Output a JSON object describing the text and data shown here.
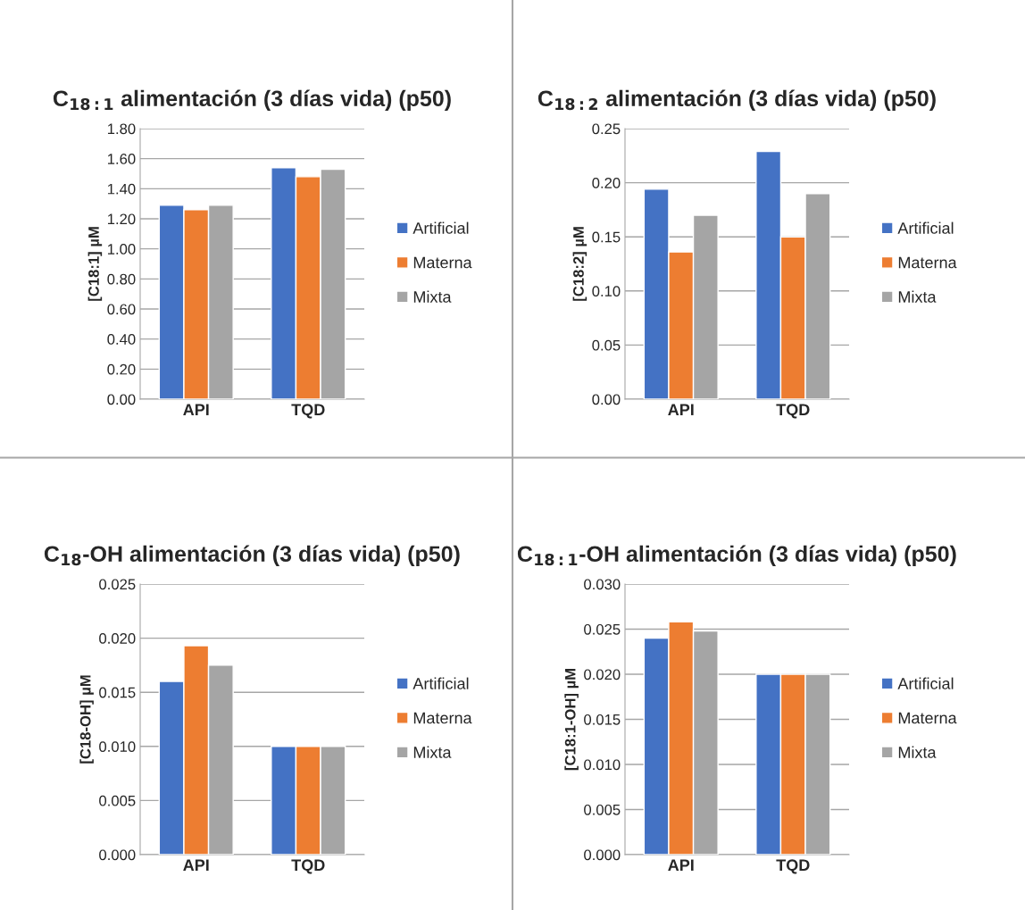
{
  "chart_data": [
    {
      "type": "bar",
      "title": "C$_{18:1}$ alimentación (3 días vida) (p50)",
      "ylabel": "[C18:1] µM",
      "categories": [
        "API",
        "TQD"
      ],
      "series": [
        {
          "name": "Artificial",
          "color": "#4472c4",
          "values": [
            1.29,
            1.54
          ]
        },
        {
          "name": "Materna",
          "color": "#ed7d31",
          "values": [
            1.26,
            1.48
          ]
        },
        {
          "name": "Mixta",
          "color": "#a5a5a5",
          "values": [
            1.29,
            1.53
          ]
        }
      ],
      "ylim": [
        0,
        1.8
      ],
      "yticks": [
        {
          "value": 0,
          "label": "0.00"
        },
        {
          "value": 0.2,
          "label": "0.20"
        },
        {
          "value": 0.4,
          "label": "0.40"
        },
        {
          "value": 0.6,
          "label": "0.60"
        },
        {
          "value": 0.8,
          "label": "0.80"
        },
        {
          "value": 1.0,
          "label": "1.00"
        },
        {
          "value": 1.2,
          "label": "1.20"
        },
        {
          "value": 1.4,
          "label": "1.40"
        },
        {
          "value": 1.6,
          "label": "1.60"
        },
        {
          "value": 1.8,
          "label": "1.80"
        }
      ],
      "grid": "y",
      "legend": "right"
    },
    {
      "type": "bar",
      "title": "C$_{18:2}$ alimentación (3 días vida) (p50)",
      "ylabel": "[C18:2] µM",
      "categories": [
        "API",
        "TQD"
      ],
      "series": [
        {
          "name": "Artificial",
          "color": "#4472c4",
          "values": [
            0.194,
            0.229
          ]
        },
        {
          "name": "Materna",
          "color": "#ed7d31",
          "values": [
            0.136,
            0.15
          ]
        },
        {
          "name": "Mixta",
          "color": "#a5a5a5",
          "values": [
            0.17,
            0.19
          ]
        }
      ],
      "ylim": [
        0,
        0.25
      ],
      "yticks": [
        {
          "value": 0,
          "label": "0.00"
        },
        {
          "value": 0.05,
          "label": "0.05"
        },
        {
          "value": 0.1,
          "label": "0.10"
        },
        {
          "value": 0.15,
          "label": "0.15"
        },
        {
          "value": 0.2,
          "label": "0.20"
        },
        {
          "value": 0.25,
          "label": "0.25"
        }
      ],
      "grid": "y",
      "legend": "right"
    },
    {
      "type": "bar",
      "title": "C$_{18}$-OH alimentación (3 días vida) (p50)",
      "ylabel": "[C18-OH] µM",
      "categories": [
        "API",
        "TQD"
      ],
      "series": [
        {
          "name": "Artificial",
          "color": "#4472c4",
          "values": [
            0.016,
            0.01
          ]
        },
        {
          "name": "Materna",
          "color": "#ed7d31",
          "values": [
            0.0193,
            0.01
          ]
        },
        {
          "name": "Mixta",
          "color": "#a5a5a5",
          "values": [
            0.0175,
            0.01
          ]
        }
      ],
      "ylim": [
        0,
        0.025
      ],
      "yticks": [
        {
          "value": 0,
          "label": "0.000"
        },
        {
          "value": 0.005,
          "label": "0.005"
        },
        {
          "value": 0.01,
          "label": "0.010"
        },
        {
          "value": 0.015,
          "label": "0.015"
        },
        {
          "value": 0.02,
          "label": "0.020"
        },
        {
          "value": 0.025,
          "label": "0.025"
        }
      ],
      "grid": "y",
      "legend": "right"
    },
    {
      "type": "bar",
      "title": "C$_{18:1}$-OH alimentación (3 días vida) (p50)",
      "ylabel": "[C18:1-OH] µM",
      "categories": [
        "API",
        "TQD"
      ],
      "series": [
        {
          "name": "Artificial",
          "color": "#4472c4",
          "values": [
            0.024,
            0.02
          ]
        },
        {
          "name": "Materna",
          "color": "#ed7d31",
          "values": [
            0.0258,
            0.02
          ]
        },
        {
          "name": "Mixta",
          "color": "#a5a5a5",
          "values": [
            0.0248,
            0.02
          ]
        }
      ],
      "ylim": [
        0,
        0.03
      ],
      "yticks": [
        {
          "value": 0,
          "label": "0.000"
        },
        {
          "value": 0.005,
          "label": "0.005"
        },
        {
          "value": 0.01,
          "label": "0.010"
        },
        {
          "value": 0.015,
          "label": "0.015"
        },
        {
          "value": 0.02,
          "label": "0.020"
        },
        {
          "value": 0.025,
          "label": "0.025"
        },
        {
          "value": 0.03,
          "label": "0.030"
        }
      ],
      "grid": "y",
      "legend": "right"
    }
  ]
}
